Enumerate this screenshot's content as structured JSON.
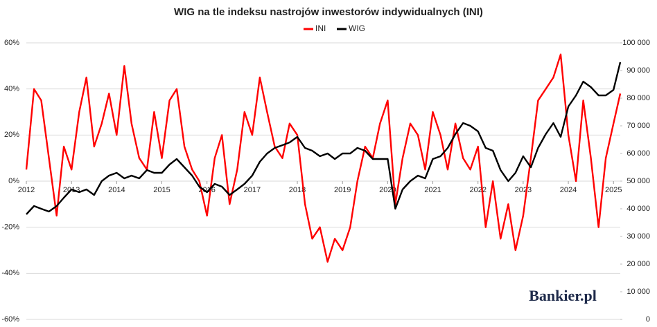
{
  "chart_data": {
    "type": "line",
    "title": "WIG na tle indeksu nastrojów inwestorów indywidualnych (INI)",
    "watermark": "Bankier.pl",
    "legend": "top",
    "grid": true,
    "x": [
      2012,
      2012.17,
      2012.33,
      2012.5,
      2012.67,
      2012.83,
      2013,
      2013.17,
      2013.33,
      2013.5,
      2013.67,
      2013.83,
      2014,
      2014.17,
      2014.33,
      2014.5,
      2014.67,
      2014.83,
      2015,
      2015.17,
      2015.33,
      2015.5,
      2015.67,
      2015.83,
      2016,
      2016.17,
      2016.33,
      2016.5,
      2016.67,
      2016.83,
      2017,
      2017.17,
      2017.33,
      2017.5,
      2017.67,
      2017.83,
      2018,
      2018.17,
      2018.33,
      2018.5,
      2018.67,
      2018.83,
      2019,
      2019.17,
      2019.33,
      2019.5,
      2019.67,
      2019.83,
      2020,
      2020.17,
      2020.33,
      2020.5,
      2020.67,
      2020.83,
      2021,
      2021.17,
      2021.33,
      2021.5,
      2021.67,
      2021.83,
      2022,
      2022.17,
      2022.33,
      2022.5,
      2022.67,
      2022.83,
      2023,
      2023.17,
      2023.33,
      2023.5,
      2023.67,
      2023.83,
      2024,
      2024.17,
      2024.33,
      2024.5,
      2024.67,
      2024.83,
      2025,
      2025.15
    ],
    "xlim": [
      2012,
      2025.15
    ],
    "xticks": [
      2012,
      2013,
      2014,
      2015,
      2016,
      2017,
      2018,
      2019,
      2020,
      2021,
      2022,
      2023,
      2024,
      2025
    ],
    "ylim": [
      -60,
      60
    ],
    "yticks": [
      {
        "value": -60,
        "label": "-60%"
      },
      {
        "value": -40,
        "label": "-40%"
      },
      {
        "value": -20,
        "label": "-20%"
      },
      {
        "value": 0,
        "label": "0%"
      },
      {
        "value": 20,
        "label": "20%"
      },
      {
        "value": 40,
        "label": "40%"
      },
      {
        "value": 60,
        "label": "60%"
      }
    ],
    "y2lim": [
      0,
      100000
    ],
    "y2ticks": [
      0,
      {
        "value": 10000,
        "label": "10 000"
      },
      {
        "value": 20000,
        "label": "20 000"
      },
      {
        "value": 30000,
        "label": "30 000"
      },
      {
        "value": 40000,
        "label": "40 000"
      },
      {
        "value": 50000,
        "label": "50 000"
      },
      {
        "value": 60000,
        "label": "60 000"
      },
      {
        "value": 70000,
        "label": "70 000"
      },
      {
        "value": 80000,
        "label": "80 000"
      },
      {
        "value": 90000,
        "label": "90 000"
      },
      {
        "value": 100000,
        "label": "100 000"
      }
    ],
    "series": [
      {
        "name": "INI",
        "color": "#ff0000",
        "values": [
          5,
          40,
          35,
          10,
          -15,
          15,
          5,
          30,
          45,
          15,
          25,
          38,
          20,
          50,
          25,
          10,
          5,
          30,
          10,
          35,
          40,
          15,
          5,
          0,
          -15,
          10,
          20,
          -10,
          5,
          30,
          20,
          45,
          30,
          15,
          10,
          25,
          20,
          -10,
          -25,
          -20,
          -35,
          -25,
          -30,
          -20,
          0,
          15,
          10,
          25,
          35,
          -10,
          10,
          25,
          20,
          5,
          30,
          20,
          5,
          25,
          10,
          5,
          15,
          -20,
          0,
          -25,
          -10,
          -30,
          -15,
          10,
          35,
          40,
          45,
          55,
          20,
          0,
          35,
          10,
          -20,
          10,
          25,
          38
        ]
      },
      {
        "name": "WIG",
        "color": "#000000",
        "axis": "y2",
        "values": [
          38000,
          41000,
          40000,
          39000,
          41000,
          44000,
          47000,
          46000,
          47000,
          45000,
          50000,
          52000,
          53000,
          51000,
          52000,
          51000,
          54000,
          53000,
          53000,
          56000,
          58000,
          55000,
          52000,
          48000,
          46000,
          49000,
          48000,
          45000,
          47000,
          49000,
          52000,
          57000,
          60000,
          62000,
          63000,
          64000,
          66000,
          62000,
          61000,
          59000,
          60000,
          58000,
          60000,
          60000,
          62000,
          61000,
          58000,
          58000,
          58000,
          40000,
          47000,
          50000,
          52000,
          51000,
          58000,
          59000,
          62000,
          67000,
          71000,
          70000,
          68000,
          62000,
          61000,
          54000,
          50000,
          53000,
          59000,
          55000,
          62000,
          67000,
          71000,
          66000,
          77000,
          81000,
          86000,
          84000,
          81000,
          81000,
          83000,
          93000
        ]
      }
    ]
  }
}
